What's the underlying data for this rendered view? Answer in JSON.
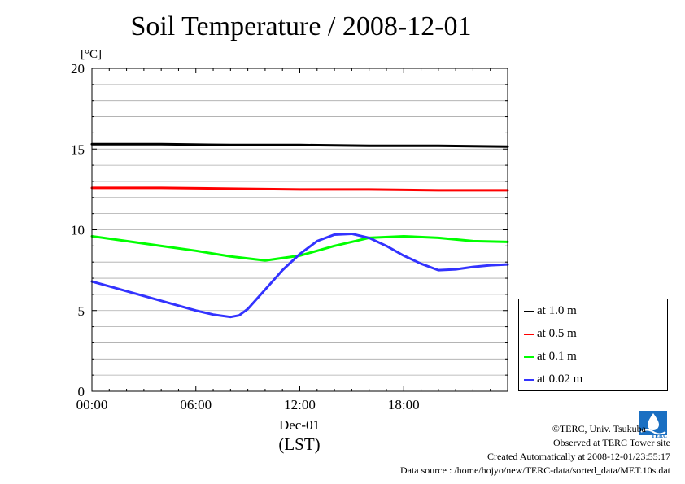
{
  "chart_data": {
    "type": "line",
    "title": "Soil Temperature / 2008-12-01",
    "ylabel": "[°C]",
    "xlabel": "(LST)",
    "x_date_label": "Dec-01",
    "ylim": [
      0,
      20
    ],
    "yticks": [
      "0",
      "5",
      "10",
      "15",
      "20"
    ],
    "xticks": [
      {
        "hour": 0,
        "label": "00:00"
      },
      {
        "hour": 6,
        "label": "06:00"
      },
      {
        "hour": 12,
        "label": "12:00"
      },
      {
        "hour": 18,
        "label": "18:00"
      }
    ],
    "xlim_hours": [
      0,
      24
    ],
    "grid": true,
    "legend_position": "bottom-right outside",
    "series": [
      {
        "name": "at 1.0 m",
        "color": "#000000",
        "x": [
          0,
          4,
          8,
          12,
          16,
          20,
          24
        ],
        "y": [
          15.3,
          15.3,
          15.25,
          15.25,
          15.2,
          15.2,
          15.15
        ]
      },
      {
        "name": "at 0.5 m",
        "color": "#ff0000",
        "x": [
          0,
          4,
          8,
          12,
          16,
          20,
          24
        ],
        "y": [
          12.6,
          12.6,
          12.55,
          12.5,
          12.5,
          12.45,
          12.45
        ]
      },
      {
        "name": "at 0.1 m",
        "color": "#00ff00",
        "x": [
          0,
          2,
          4,
          6,
          8,
          10,
          12,
          14,
          16,
          18,
          20,
          22,
          24
        ],
        "y": [
          9.6,
          9.3,
          9.0,
          8.7,
          8.35,
          8.1,
          8.4,
          9.0,
          9.5,
          9.6,
          9.5,
          9.3,
          9.25
        ]
      },
      {
        "name": "at 0.02 m",
        "color": "#3333ff",
        "x": [
          0,
          1,
          2,
          4,
          6,
          7,
          8,
          8.5,
          9,
          10,
          11,
          12,
          13,
          14,
          15,
          16,
          17,
          18,
          19,
          20,
          21,
          22,
          23,
          24
        ],
        "y": [
          6.8,
          6.5,
          6.2,
          5.6,
          5.0,
          4.75,
          4.6,
          4.7,
          5.1,
          6.3,
          7.5,
          8.5,
          9.3,
          9.7,
          9.75,
          9.5,
          9.0,
          8.4,
          7.9,
          7.5,
          7.55,
          7.7,
          7.8,
          7.85
        ]
      }
    ]
  },
  "credits": {
    "copyright": "©TERC, Univ. Tsukuba",
    "site": "Observed at TERC Tower site",
    "created": "Created Automatically at 2008-12-01/23:55:17",
    "source": "Data source : /home/hojyo/new/TERC-data/sorted_data/MET.10s.dat"
  },
  "logo": {
    "text": "TERC",
    "color": "#1a6fc2"
  }
}
